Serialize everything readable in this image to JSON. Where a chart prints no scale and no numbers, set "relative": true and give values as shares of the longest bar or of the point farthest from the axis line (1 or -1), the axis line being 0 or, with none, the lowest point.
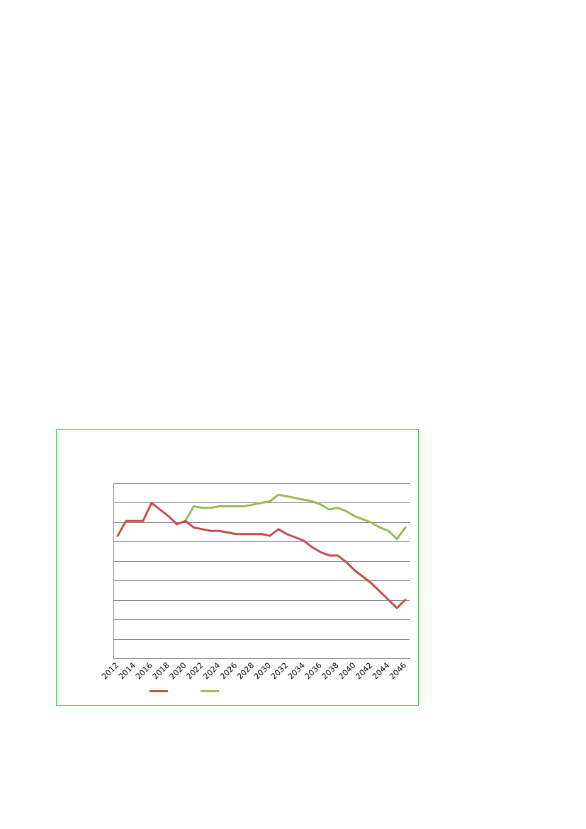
{
  "chart_data": {
    "type": "line",
    "relative": true,
    "grid": "y",
    "marker": "none",
    "line_style": "solid",
    "categories": [
      "2012",
      null,
      "2014",
      null,
      "2016",
      null,
      "2018",
      null,
      "2020",
      null,
      "2022",
      null,
      "2024",
      null,
      "2026",
      null,
      "2028",
      null,
      "2030",
      null,
      "2032",
      null,
      "2034",
      null,
      "2036",
      null,
      "2038",
      null,
      "2040",
      null,
      "2042",
      null,
      "2044",
      null,
      "2046"
    ],
    "series": [
      {
        "color": "#c0504d",
        "values": [
          0.75,
          0.84,
          0.84,
          0.84,
          0.95,
          0.91,
          0.87,
          0.82,
          0.84,
          0.8,
          0.79,
          0.78,
          0.78,
          0.77,
          0.76,
          0.76,
          0.76,
          0.76,
          0.75,
          0.79,
          0.76,
          0.74,
          0.72,
          0.68,
          0.65,
          0.63,
          0.63,
          0.59,
          0.54,
          0.5,
          0.46,
          0.41,
          0.36,
          0.31,
          0.36
        ]
      },
      {
        "color": "#9bbb59",
        "values": [
          null,
          null,
          null,
          null,
          null,
          null,
          null,
          null,
          0.84,
          0.93,
          0.92,
          0.92,
          0.93,
          0.93,
          0.93,
          0.93,
          0.94,
          0.95,
          0.96,
          1,
          0.99,
          0.98,
          0.97,
          0.96,
          0.94,
          0.91,
          0.92,
          0.9,
          0.87,
          0.85,
          0.83,
          0.8,
          0.78,
          0.73,
          0.8
        ]
      }
    ]
  }
}
